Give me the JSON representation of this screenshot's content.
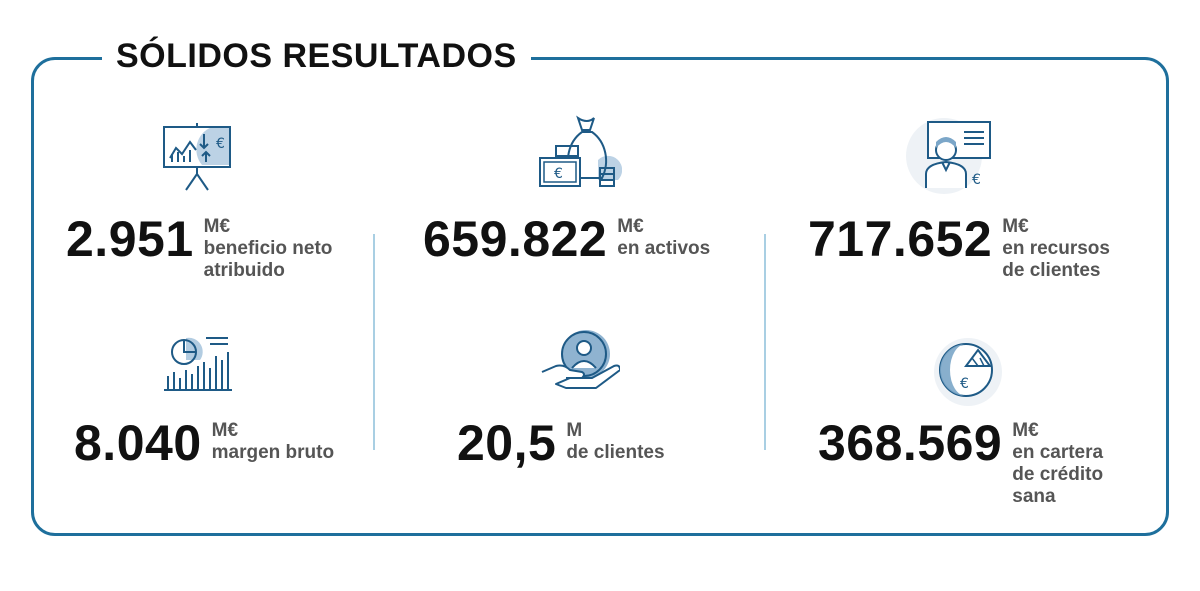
{
  "title": "SÓLIDOS RESULTADOS",
  "stats": [
    {
      "icon": "presentation-chart-icon",
      "value": "2.951",
      "unit": "M€",
      "label_lines": [
        "beneficio neto",
        "atribuido"
      ]
    },
    {
      "icon": "money-bag-icon",
      "value": "659.822",
      "unit": "M€",
      "label_lines": [
        "en activos",
        ""
      ]
    },
    {
      "icon": "client-advisor-icon",
      "value": "717.652",
      "unit": "M€",
      "label_lines": [
        "en recursos",
        "de clientes"
      ]
    },
    {
      "icon": "pie-bar-chart-icon",
      "value": "8.040",
      "unit": "M€",
      "label_lines": [
        "margen bruto",
        ""
      ]
    },
    {
      "icon": "hand-customer-icon",
      "value": "20,5",
      "unit": "M",
      "label_lines": [
        "de clientes",
        ""
      ]
    },
    {
      "icon": "credit-portfolio-icon",
      "value": "368.569",
      "unit": "M€",
      "label_lines": [
        "en cartera",
        "de crédito",
        "sana"
      ]
    }
  ],
  "colors": {
    "accent": "#1e6f9c",
    "icon_fill": "#7ba6c8",
    "divider": "#a9cfe3",
    "label": "#555555"
  }
}
